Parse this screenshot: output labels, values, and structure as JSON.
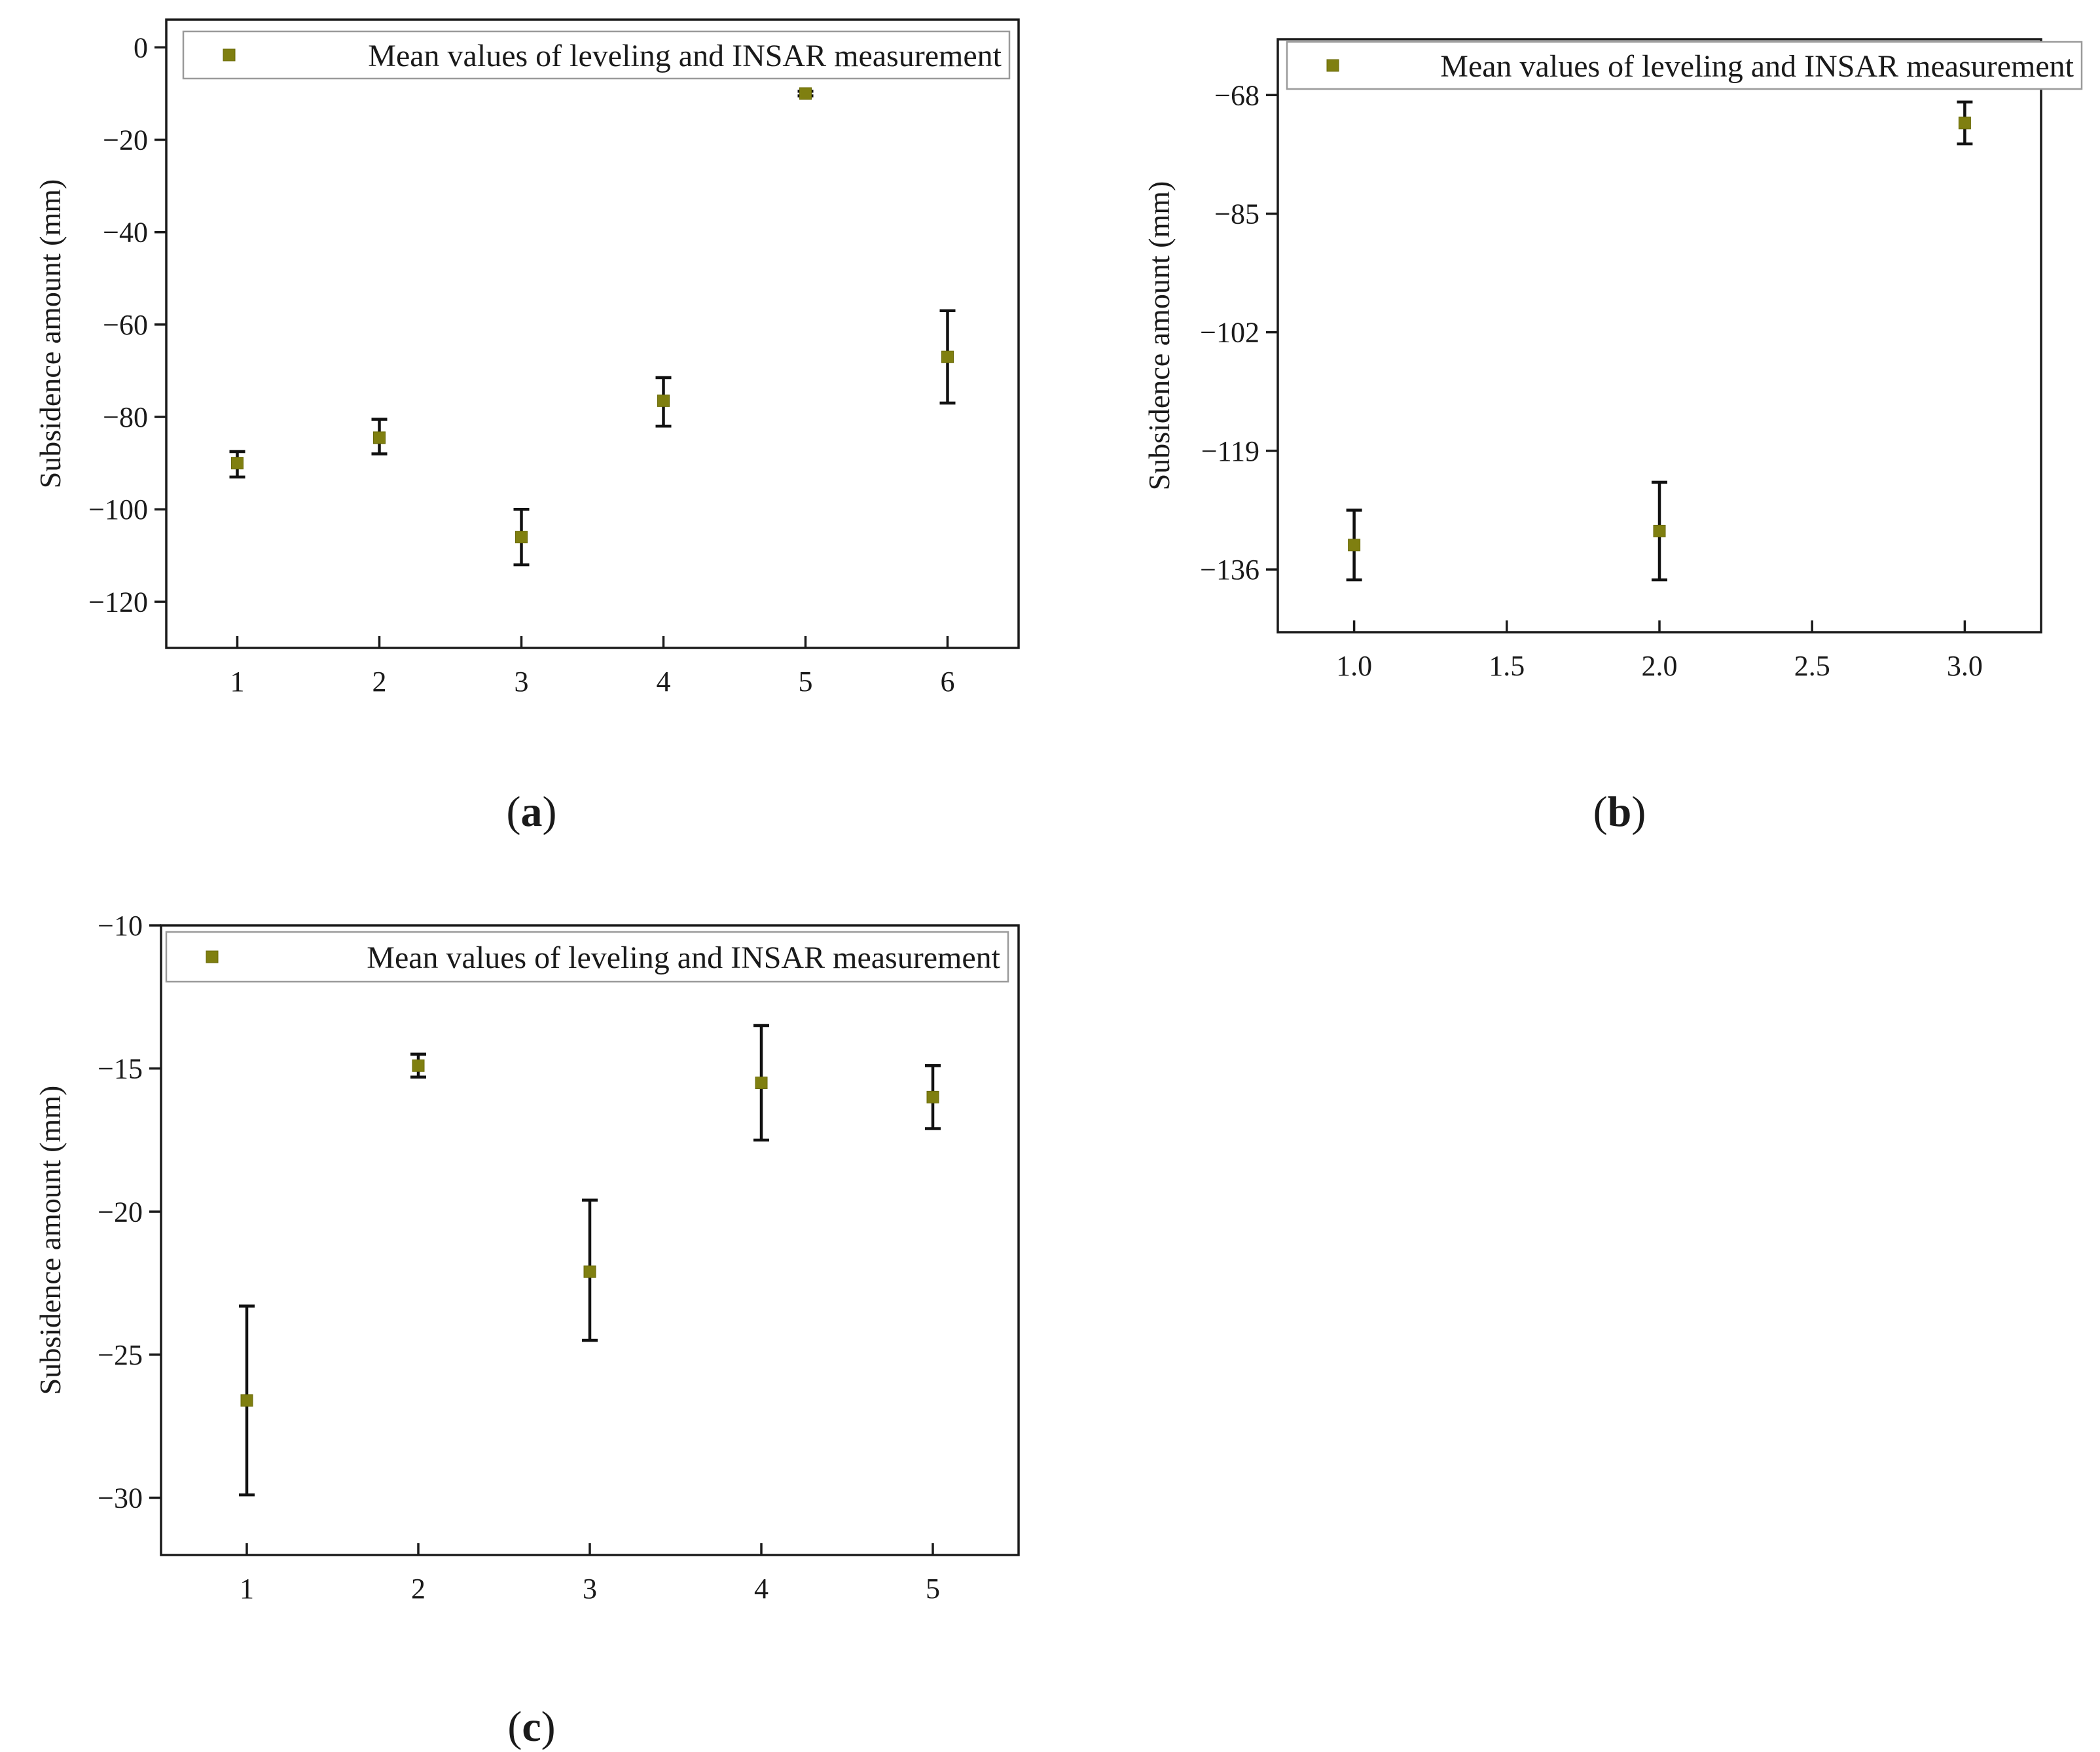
{
  "colors": {
    "marker": "#7f7f10",
    "errorbar": "#111111",
    "axis": "#1a1a1a"
  },
  "chart_data": [
    {
      "id": "a",
      "panel_label": "a",
      "type": "scatter",
      "ylabel": "Subsidence amount (mm)",
      "xlabel": "",
      "xlim": [
        0.5,
        6.5
      ],
      "ylim": [
        -130,
        6
      ],
      "x_ticks": [
        1,
        2,
        3,
        4,
        5,
        6
      ],
      "x_tick_labels": [
        "1",
        "2",
        "3",
        "4",
        "5",
        "6"
      ],
      "y_ticks": [
        0,
        -20,
        -40,
        -60,
        -80,
        -100,
        -120
      ],
      "y_tick_labels": [
        "0",
        "−20",
        "−40",
        "−60",
        "−80",
        "−100",
        "−120"
      ],
      "legend": {
        "placement": "top-right",
        "label": "Mean values of leveling and INSAR measurement"
      },
      "series": [
        {
          "name": "Mean values of leveling and INSAR measurement",
          "points": [
            {
              "x": 1,
              "y": -90,
              "err_low": -93,
              "err_high": -87.5
            },
            {
              "x": 2,
              "y": -84.5,
              "err_low": -88,
              "err_high": -80.5
            },
            {
              "x": 3,
              "y": -106,
              "err_low": -112,
              "err_high": -100
            },
            {
              "x": 4,
              "y": -76.5,
              "err_low": -82,
              "err_high": -71.5
            },
            {
              "x": 5,
              "y": -10,
              "err_low": -10.5,
              "err_high": -9.5
            },
            {
              "x": 6,
              "y": -67,
              "err_low": -77,
              "err_high": -57
            }
          ]
        }
      ]
    },
    {
      "id": "b",
      "panel_label": "b",
      "type": "scatter",
      "ylabel": "Subsidence amount (mm)",
      "xlabel": "",
      "xlim": [
        0.75,
        3.25
      ],
      "ylim": [
        -145,
        -60
      ],
      "x_ticks": [
        1.0,
        1.5,
        2.0,
        2.5,
        3.0
      ],
      "x_tick_labels": [
        "1.0",
        "1.5",
        "2.0",
        "2.5",
        "3.0"
      ],
      "y_ticks": [
        -68,
        -85,
        -102,
        -119,
        -136
      ],
      "y_tick_labels": [
        "−68",
        "−85",
        "−102",
        "−119",
        "−136"
      ],
      "legend": {
        "placement": "top-right",
        "label": "Mean values of leveling and INSAR measurement"
      },
      "series": [
        {
          "name": "Mean values of leveling and INSAR measurement",
          "points": [
            {
              "x": 1.0,
              "y": -132.5,
              "err_low": -137.5,
              "err_high": -127.5
            },
            {
              "x": 2.0,
              "y": -130.5,
              "err_low": -137.5,
              "err_high": -123.5
            },
            {
              "x": 3.0,
              "y": -72,
              "err_low": -75,
              "err_high": -69
            }
          ]
        }
      ]
    },
    {
      "id": "c",
      "panel_label": "c",
      "type": "scatter",
      "ylabel": "Subsidence amount (mm)",
      "xlabel": "",
      "xlim": [
        0.5,
        5.5
      ],
      "ylim": [
        -32,
        -10
      ],
      "x_ticks": [
        1,
        2,
        3,
        4,
        5
      ],
      "x_tick_labels": [
        "1",
        "2",
        "3",
        "4",
        "5"
      ],
      "y_ticks": [
        -10,
        -15,
        -20,
        -25,
        -30
      ],
      "y_tick_labels": [
        "−10",
        "−15",
        "−20",
        "−25",
        "−30"
      ],
      "legend": {
        "placement": "top-right",
        "label": "Mean values of leveling and INSAR measurement"
      },
      "series": [
        {
          "name": "Mean values of leveling and INSAR measurement",
          "points": [
            {
              "x": 1,
              "y": -26.6,
              "err_low": -29.9,
              "err_high": -23.3
            },
            {
              "x": 2,
              "y": -14.9,
              "err_low": -15.3,
              "err_high": -14.5
            },
            {
              "x": 3,
              "y": -22.1,
              "err_low": -24.5,
              "err_high": -19.6
            },
            {
              "x": 4,
              "y": -15.5,
              "err_low": -17.5,
              "err_high": -13.5
            },
            {
              "x": 5,
              "y": -16,
              "err_low": -17.1,
              "err_high": -14.9
            }
          ]
        }
      ]
    }
  ]
}
